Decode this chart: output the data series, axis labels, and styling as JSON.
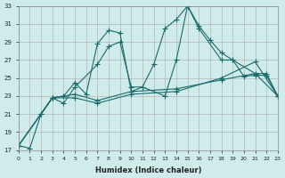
{
  "xlabel": "Humidex (Indice chaleur)",
  "ylabel": "",
  "bg_color": "#d0ecea",
  "grid_color": "#aaaaaa",
  "line_color": "#1a6b6b",
  "xlim": [
    0,
    23
  ],
  "ylim": [
    17,
    33
  ],
  "yticks": [
    17,
    19,
    21,
    23,
    25,
    27,
    29,
    31,
    33
  ],
  "xticks": [
    0,
    1,
    2,
    3,
    4,
    5,
    6,
    7,
    8,
    9,
    10,
    11,
    12,
    13,
    14,
    15,
    16,
    17,
    18,
    19,
    20,
    21,
    22,
    23
  ],
  "lines": [
    {
      "x": [
        0,
        1,
        2,
        3,
        4,
        5,
        6,
        7,
        8,
        9,
        10,
        11,
        12,
        13,
        14,
        15,
        16,
        17,
        18,
        19,
        20,
        21,
        22,
        23
      ],
      "y": [
        17.5,
        17.2,
        21.0,
        22.8,
        23.0,
        24.5,
        23.2,
        28.8,
        30.3,
        30.0,
        23.5,
        24.0,
        26.5,
        30.5,
        31.5,
        33.0,
        30.8,
        29.2,
        27.8,
        27.0,
        25.2,
        25.3,
        25.3,
        23.0
      ]
    },
    {
      "x": [
        0,
        2,
        3,
        4,
        5,
        7,
        8,
        9,
        10,
        11,
        13,
        14,
        15,
        16,
        18,
        19,
        21,
        22,
        23
      ],
      "y": [
        17.5,
        21.0,
        22.8,
        22.2,
        24.0,
        26.5,
        28.5,
        29.0,
        24.0,
        24.0,
        23.0,
        27.0,
        33.0,
        30.5,
        27.0,
        27.0,
        25.5,
        25.5,
        23.0
      ]
    },
    {
      "x": [
        0,
        3,
        5,
        7,
        10,
        14,
        18,
        21,
        23
      ],
      "y": [
        17.5,
        22.8,
        23.2,
        22.5,
        23.5,
        23.8,
        24.8,
        25.5,
        23.0
      ]
    },
    {
      "x": [
        0,
        3,
        5,
        7,
        10,
        14,
        18,
        21,
        23
      ],
      "y": [
        17.5,
        22.8,
        22.8,
        22.2,
        23.2,
        23.5,
        25.0,
        26.8,
        23.0
      ]
    }
  ]
}
